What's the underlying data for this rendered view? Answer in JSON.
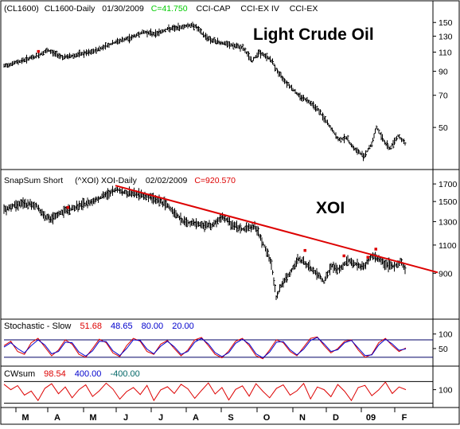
{
  "chart_data": [
    {
      "panel": "crude",
      "type": "bar",
      "header": {
        "symbol": "(CL1600)",
        "name": "CL1600-Daily",
        "date": "01/30/2009",
        "close": "C=41.750",
        "studies": [
          "CCI-CAP",
          "CCI-EX IV",
          "CCI-EX"
        ]
      },
      "title": "Light Crude Oil",
      "y_scale": "log",
      "y_ticks": [
        150,
        130,
        110,
        90,
        70,
        50
      ],
      "ylim": [
        33,
        158
      ],
      "trajectory": [
        [
          0,
          95
        ],
        [
          40,
          105
        ],
        [
          55,
          112
        ],
        [
          75,
          104
        ],
        [
          110,
          110
        ],
        [
          140,
          122
        ],
        [
          160,
          128
        ],
        [
          175,
          136
        ],
        [
          190,
          133
        ],
        [
          205,
          140
        ],
        [
          220,
          142
        ],
        [
          232,
          146
        ],
        [
          240,
          145
        ],
        [
          250,
          132
        ],
        [
          262,
          124
        ],
        [
          278,
          120
        ],
        [
          300,
          115
        ],
        [
          312,
          100
        ],
        [
          320,
          110
        ],
        [
          335,
          102
        ],
        [
          345,
          88
        ],
        [
          355,
          80
        ],
        [
          370,
          70
        ],
        [
          385,
          65
        ],
        [
          395,
          60
        ],
        [
          402,
          55
        ],
        [
          410,
          50
        ],
        [
          420,
          44
        ],
        [
          430,
          45
        ],
        [
          440,
          40
        ],
        [
          452,
          37
        ],
        [
          462,
          42
        ],
        [
          468,
          50
        ],
        [
          478,
          43
        ],
        [
          485,
          40
        ],
        [
          495,
          46
        ],
        [
          505,
          41.75
        ]
      ],
      "markers": [
        [
          43,
          111
        ]
      ]
    },
    {
      "panel": "xoi",
      "type": "bar",
      "header": {
        "study": "SnapSum Short",
        "name": "(^XOI) XOI-Daily",
        "date": "02/02/2009",
        "close": "C=920.570"
      },
      "title": "XOI",
      "y_scale": "log",
      "y_ticks": [
        1700,
        1500,
        1300,
        1100,
        900
      ],
      "ylim": [
        660,
        1790
      ],
      "trajectory": [
        [
          0,
          1420
        ],
        [
          20,
          1480
        ],
        [
          40,
          1460
        ],
        [
          50,
          1360
        ],
        [
          60,
          1320
        ],
        [
          70,
          1380
        ],
        [
          90,
          1440
        ],
        [
          110,
          1500
        ],
        [
          130,
          1580
        ],
        [
          142,
          1640
        ],
        [
          150,
          1600
        ],
        [
          170,
          1580
        ],
        [
          190,
          1530
        ],
        [
          205,
          1460
        ],
        [
          215,
          1380
        ],
        [
          225,
          1300
        ],
        [
          240,
          1280
        ],
        [
          260,
          1260
        ],
        [
          275,
          1340
        ],
        [
          285,
          1280
        ],
        [
          300,
          1230
        ],
        [
          315,
          1260
        ],
        [
          325,
          1120
        ],
        [
          335,
          980
        ],
        [
          342,
          760
        ],
        [
          350,
          840
        ],
        [
          360,
          900
        ],
        [
          370,
          1000
        ],
        [
          380,
          960
        ],
        [
          392,
          900
        ],
        [
          402,
          850
        ],
        [
          412,
          950
        ],
        [
          422,
          920
        ],
        [
          432,
          990
        ],
        [
          442,
          960
        ],
        [
          452,
          940
        ],
        [
          462,
          1020
        ],
        [
          470,
          1000
        ],
        [
          480,
          960
        ],
        [
          490,
          940
        ],
        [
          498,
          980
        ],
        [
          505,
          920.57
        ]
      ],
      "markers": [
        [
          80,
          1440
        ],
        [
          378,
          1060
        ],
        [
          427,
          1020
        ],
        [
          457,
          1010
        ],
        [
          467,
          1070
        ]
      ],
      "trendline": [
        [
          140,
          1680
        ],
        [
          545,
          905
        ]
      ]
    },
    {
      "panel": "stochastic",
      "type": "line",
      "header": {
        "label": "Stochastic - Slow",
        "values": [
          "51.68",
          "48.65",
          "80.00",
          "20.00"
        ]
      },
      "y_ticks": [
        100,
        50
      ],
      "ylim": [
        -5,
        110
      ],
      "levels": [
        80,
        20
      ],
      "series": [
        {
          "values": [
            60,
            75,
            40,
            30,
            70,
            85,
            55,
            25,
            45,
            80,
            65,
            30,
            20,
            50,
            82,
            70,
            35,
            22,
            60,
            85,
            75,
            40,
            30,
            65,
            78,
            50,
            25,
            45,
            80,
            88,
            60,
            30,
            18,
            42,
            75,
            85,
            60,
            25,
            15,
            45,
            80,
            70,
            40,
            25,
            55,
            85,
            90,
            60,
            35,
            50,
            75,
            80,
            45,
            20,
            30,
            70,
            85,
            60,
            40,
            52
          ]
        },
        {
          "values": [
            55,
            70,
            50,
            35,
            60,
            80,
            62,
            32,
            40,
            72,
            70,
            38,
            24,
            42,
            75,
            74,
            42,
            26,
            50,
            80,
            78,
            48,
            32,
            58,
            75,
            56,
            30,
            40,
            72,
            85,
            66,
            36,
            22,
            36,
            68,
            82,
            66,
            32,
            18,
            38,
            72,
            74,
            46,
            28,
            48,
            78,
            88,
            66,
            40,
            46,
            70,
            78,
            52,
            26,
            28,
            62,
            82,
            66,
            44,
            49
          ]
        }
      ]
    },
    {
      "panel": "cwsum",
      "type": "line",
      "header": {
        "label": "CWsum",
        "values": [
          "98.54",
          "400.00",
          "-400.00"
        ]
      },
      "y_ticks": [
        100
      ],
      "ylim": [
        -500,
        500
      ],
      "levels": [
        400,
        -400
      ],
      "series": [
        {
          "values": [
            300,
            100,
            250,
            -100,
            50,
            -300,
            150,
            320,
            -50,
            200,
            -200,
            100,
            280,
            -150,
            60,
            340,
            120,
            -250,
            30,
            180,
            -80,
            260,
            -300,
            90,
            210,
            -40,
            300,
            130,
            -220,
            70,
            350,
            -60,
            180,
            -280,
            110,
            240,
            -140,
            320,
            40,
            -200,
            150,
            280,
            -100,
            60,
            330,
            -240,
            200,
            100,
            -160,
            290,
            40,
            -300,
            180,
            260,
            -120,
            90,
            380,
            -40,
            200,
            98.54
          ]
        }
      ]
    }
  ],
  "x_axis": {
    "labels": [
      "M",
      "A",
      "M",
      "J",
      "J",
      "A",
      "S",
      "O",
      "N",
      "D",
      "09",
      "F"
    ]
  },
  "colors": {
    "background": "#ffffff",
    "bars": "#000000",
    "close_value": "#00cc00",
    "xoi_close": "#dd0000",
    "trendline": "#dd0000",
    "marker": "#dd0000",
    "stoch_fast": "#dd0000",
    "stoch_slow": "#0000cc",
    "level_line": "#000066",
    "cwsum_line": "#dd0000",
    "cw_level": "#006666"
  }
}
